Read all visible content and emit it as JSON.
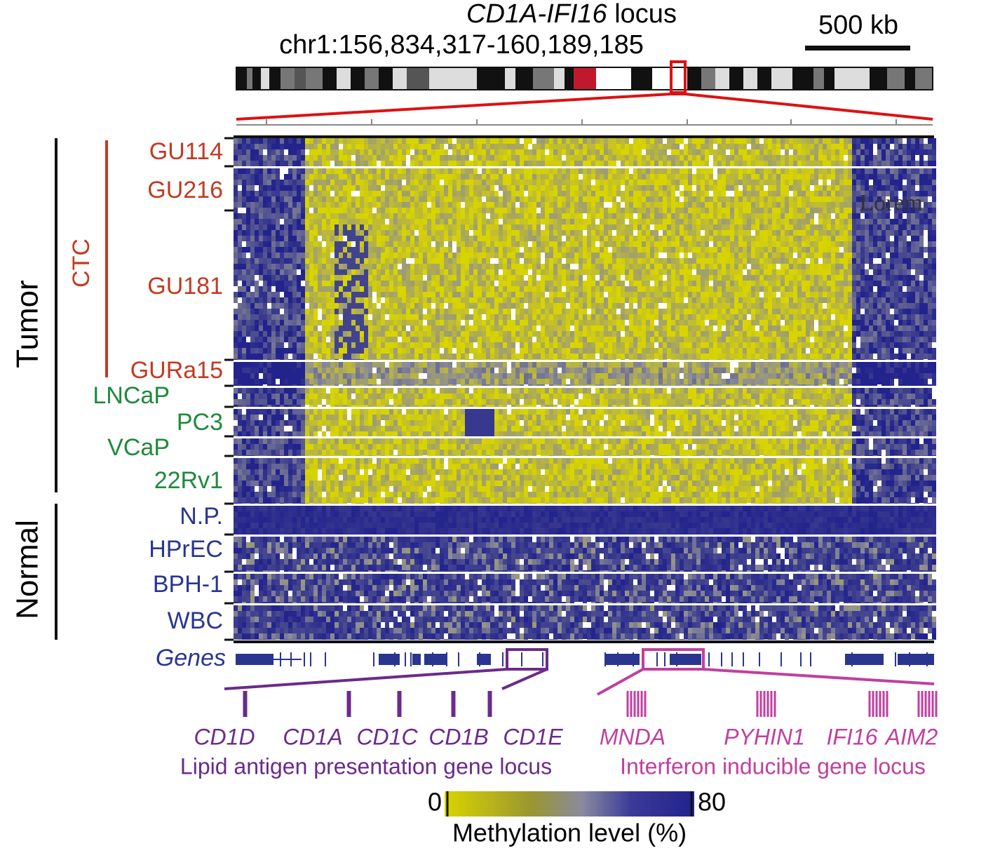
{
  "title": {
    "gene": "CD1A-IFI16",
    "suffix": "locus"
  },
  "coordinates": "chr1:156,834,317-160,189,185",
  "scale_bar": "500 kb",
  "groups": {
    "tumor": "Tumor",
    "normal": "Normal",
    "ctc": "CTC"
  },
  "samples": [
    {
      "label": "GU114",
      "color": "#c23a22"
    },
    {
      "label": "GU216",
      "color": "#c23a22"
    },
    {
      "label": "GU181",
      "color": "#c23a22"
    },
    {
      "label": "GURa15",
      "color": "#c23a22"
    },
    {
      "label": "LNCaP",
      "color": "#1f8a3c"
    },
    {
      "label": "PC3",
      "color": "#1f8a3c"
    },
    {
      "label": "VCaP",
      "color": "#1f8a3c"
    },
    {
      "label": "22Rv1",
      "color": "#1f8a3c"
    },
    {
      "label": "N.P.",
      "color": "#2a3590"
    },
    {
      "label": "HPrEC",
      "color": "#2a3590"
    },
    {
      "label": "BPH-1",
      "color": "#2a3590"
    },
    {
      "label": "WBC",
      "color": "#2a3590"
    }
  ],
  "annotation": "Lorem",
  "genes_track": "Genes",
  "loci": [
    {
      "label": "Lipid antigen presentation gene locus",
      "color": "#6b2a8c",
      "genes": [
        "CD1D",
        "CD1A",
        "CD1C",
        "CD1B",
        "CD1E"
      ]
    },
    {
      "label": "Interferon inducible gene locus",
      "color": "#c0409f",
      "genes": [
        "MNDA",
        "PYHIN1",
        "IFI16",
        "AIM2"
      ]
    }
  ],
  "colorbar": {
    "min": 0,
    "max": 80,
    "label": "Methylation level (%)"
  }
}
